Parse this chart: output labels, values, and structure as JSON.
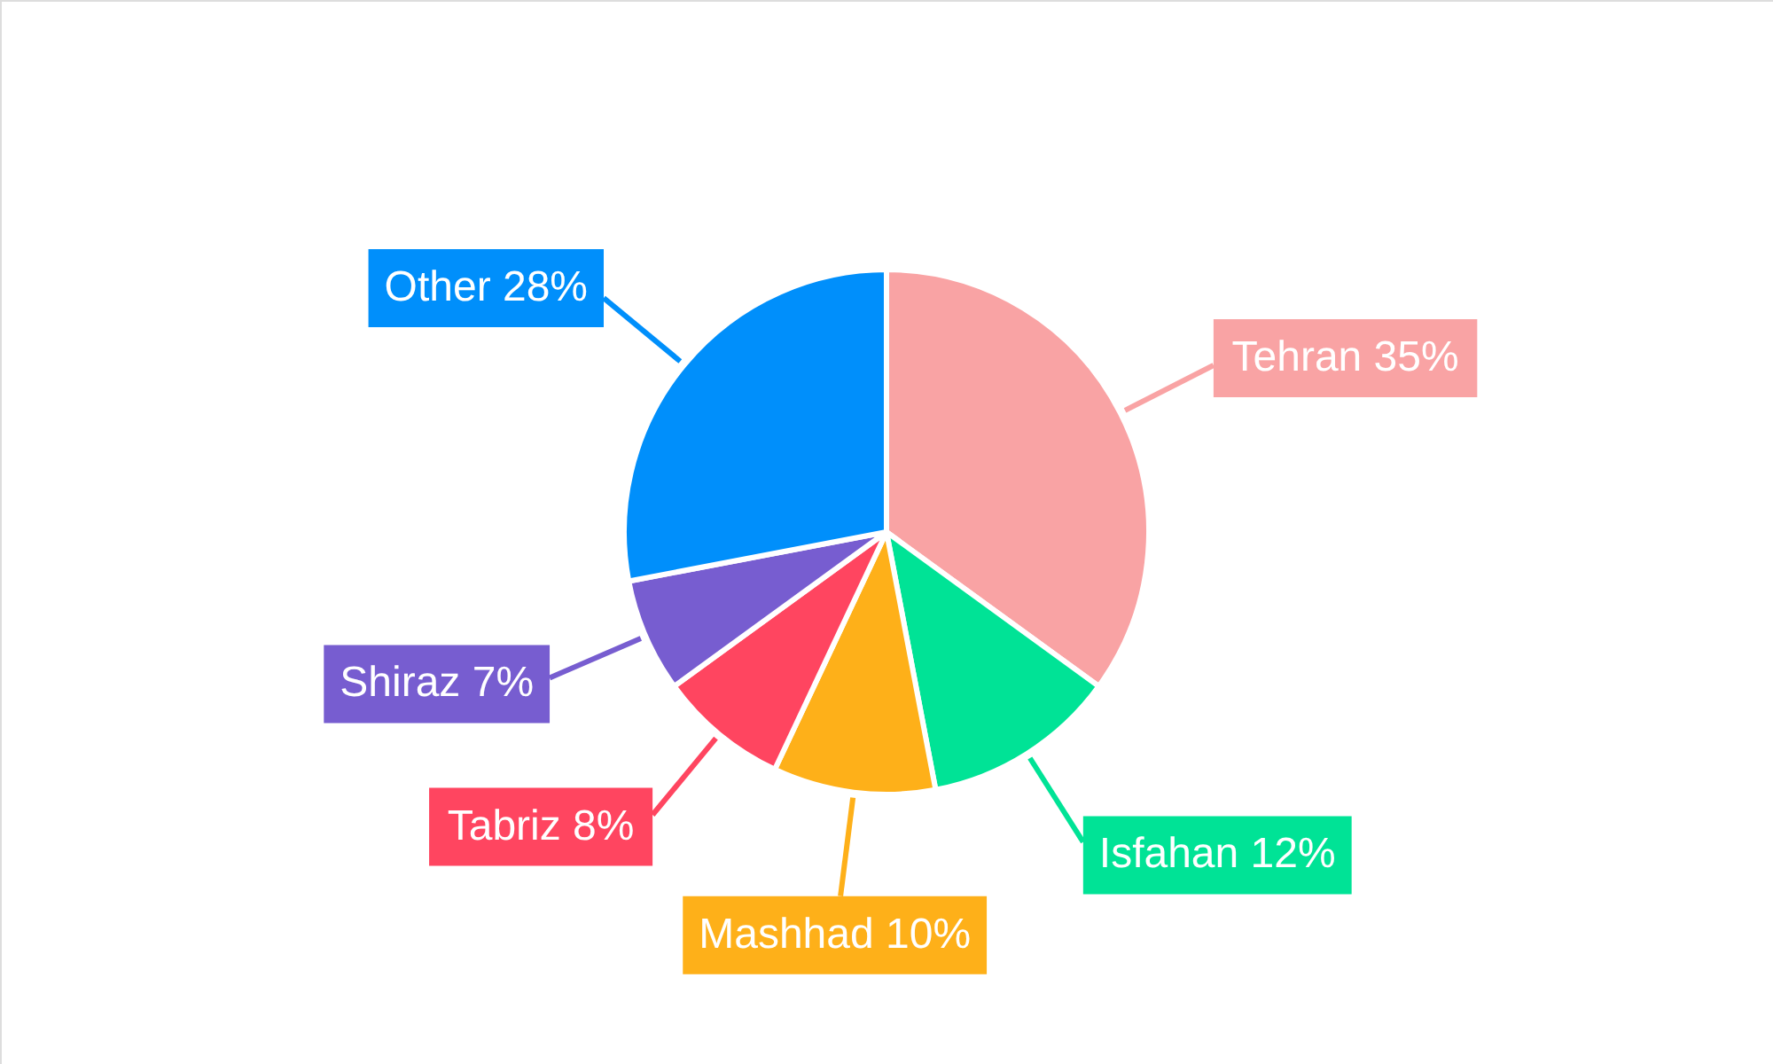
{
  "chart_data": {
    "type": "pie",
    "categories": [
      "Tehran",
      "Isfahan",
      "Mashhad",
      "Tabriz",
      "Shiraz",
      "Other"
    ],
    "values": [
      35,
      12,
      10,
      8,
      7,
      28
    ],
    "value_labels": [
      "35%",
      "12%",
      "10%",
      "8%",
      "7%",
      "28%"
    ],
    "colors": [
      "#f9a3a4",
      "#00e396",
      "#feb019",
      "#ff4560",
      "#775dd0",
      "#008ffb"
    ]
  }
}
